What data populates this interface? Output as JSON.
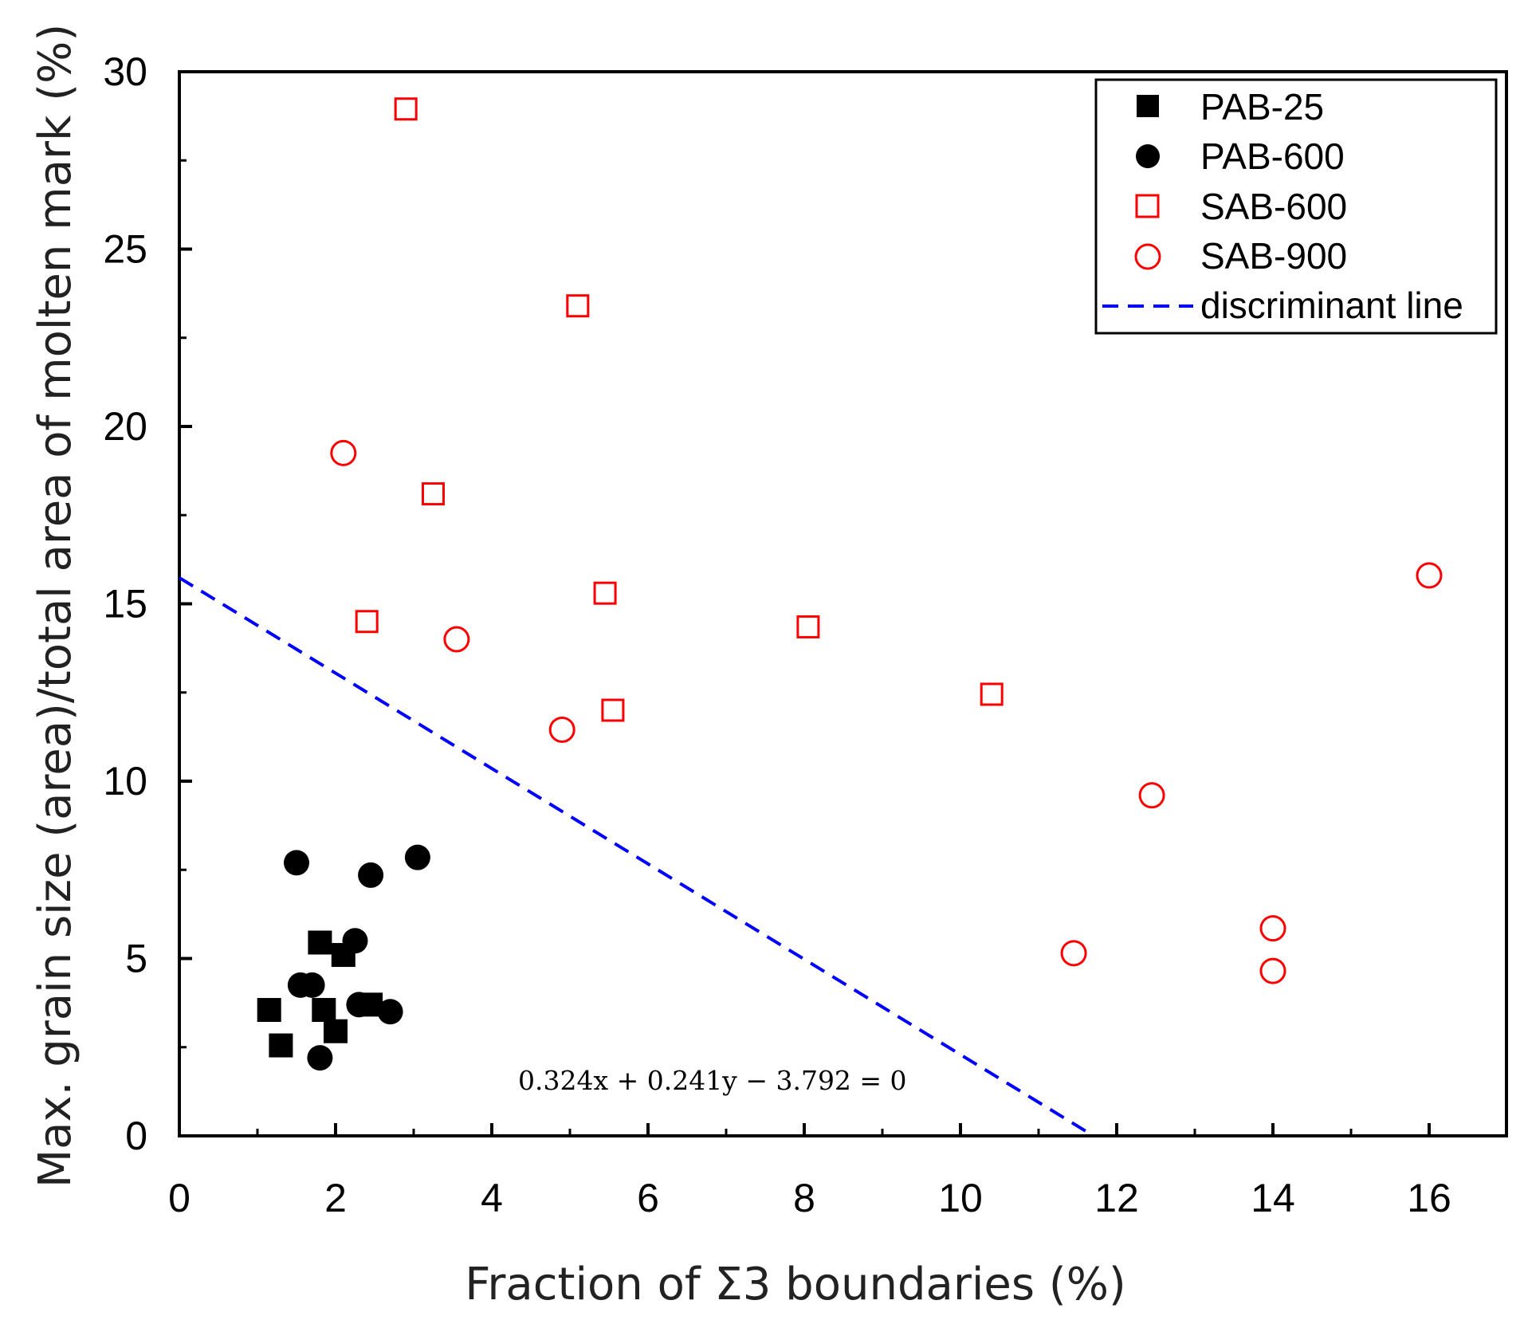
{
  "chart_data": {
    "type": "scatter",
    "xlabel": "Fraction of Σ3 boundaries (%)",
    "ylabel": "Max. grain size (area)/total area of molten mark (%)",
    "xlim": [
      0,
      17
    ],
    "ylim": [
      0,
      30
    ],
    "xticks": [
      "0",
      "2",
      "4",
      "6",
      "8",
      "10",
      "12",
      "14",
      "16"
    ],
    "yticks": [
      "0",
      "5",
      "10",
      "15",
      "20",
      "25",
      "30"
    ],
    "grid": false,
    "legend_position": "top-right",
    "series": [
      {
        "name": "PAB-25",
        "marker": "filled-square",
        "color": "#000000",
        "points": [
          [
            1.15,
            3.55
          ],
          [
            1.3,
            2.55
          ],
          [
            1.8,
            5.45
          ],
          [
            1.85,
            3.55
          ],
          [
            2.0,
            2.95
          ],
          [
            2.1,
            5.1
          ],
          [
            2.45,
            3.7
          ]
        ]
      },
      {
        "name": "PAB-600",
        "marker": "filled-circle",
        "color": "#000000",
        "points": [
          [
            1.5,
            7.7
          ],
          [
            1.55,
            4.25
          ],
          [
            1.7,
            4.25
          ],
          [
            1.8,
            2.2
          ],
          [
            2.25,
            5.5
          ],
          [
            2.3,
            3.7
          ],
          [
            2.45,
            7.35
          ],
          [
            2.7,
            3.5
          ],
          [
            3.05,
            7.85
          ]
        ]
      },
      {
        "name": "SAB-600",
        "marker": "open-square",
        "color": "#ff0000",
        "points": [
          [
            2.9,
            28.95
          ],
          [
            5.1,
            23.4
          ],
          [
            3.25,
            18.1
          ],
          [
            2.4,
            14.5
          ],
          [
            5.45,
            15.3
          ],
          [
            8.05,
            14.35
          ],
          [
            5.55,
            12.0
          ],
          [
            10.4,
            12.45
          ]
        ]
      },
      {
        "name": "SAB-900",
        "marker": "open-circle",
        "color": "#ff0000",
        "points": [
          [
            2.1,
            19.25
          ],
          [
            3.55,
            14.0
          ],
          [
            4.9,
            11.45
          ],
          [
            12.45,
            9.6
          ],
          [
            11.45,
            5.15
          ],
          [
            14.0,
            5.85
          ],
          [
            14.0,
            4.65
          ],
          [
            16.0,
            15.8
          ]
        ]
      }
    ],
    "discriminant_line": {
      "name": "discriminant line",
      "style": "dashed",
      "color": "#0000ff",
      "equation_label": "0.324x + 0.241y − 3.792 = 0",
      "a": 0.324,
      "b": 0.241,
      "c": -3.792,
      "x_range": [
        0,
        11.6
      ]
    }
  }
}
